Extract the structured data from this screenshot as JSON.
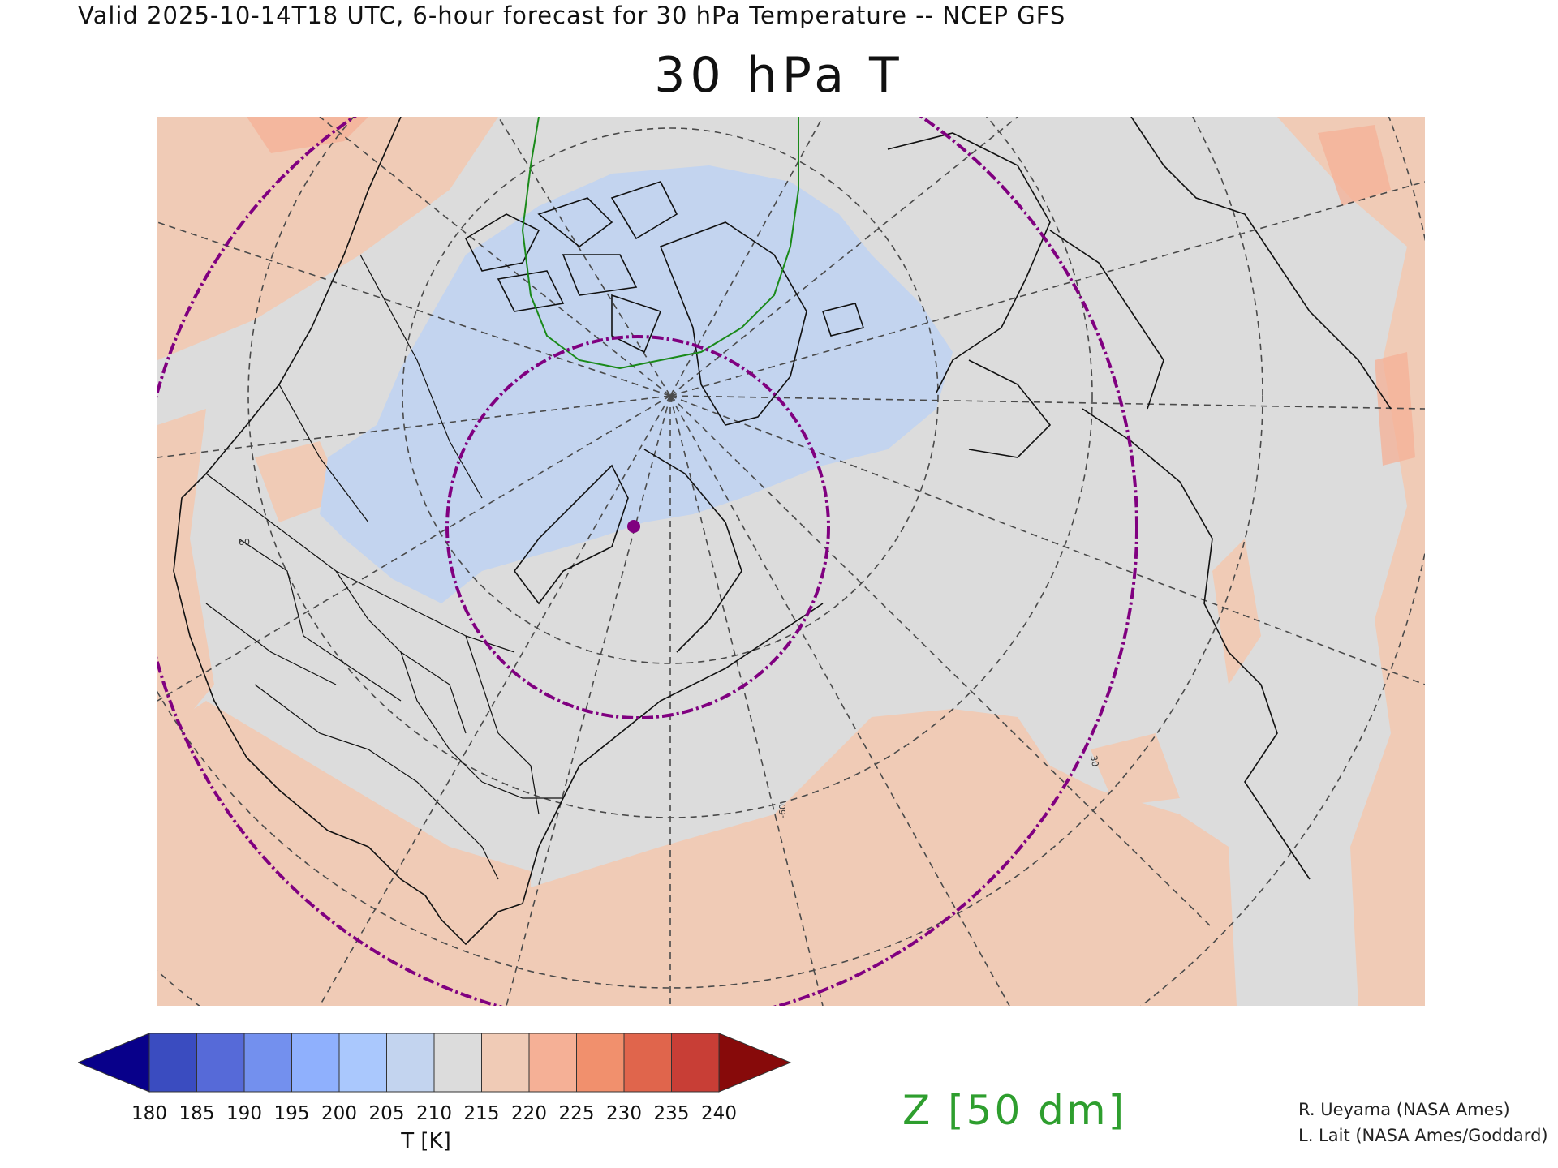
{
  "header": {
    "valid_line": "Valid 2025-10-14T18 UTC, 6-hour forecast for 30 hPa Temperature -- NCEP GFS",
    "title": "30 hPa T"
  },
  "map": {
    "projection": "polar-stereographic",
    "graticule_labels": [
      "60",
      "30",
      "-60"
    ],
    "marker": "sub-polar-point"
  },
  "colorbar": {
    "ticks": [
      "180",
      "185",
      "190",
      "195",
      "200",
      "205",
      "210",
      "215",
      "220",
      "225",
      "230",
      "235",
      "240"
    ],
    "label": "T [K]",
    "colors": [
      "#08008a",
      "#3a4cc0",
      "#566ad8",
      "#7390ee",
      "#8fb0fd",
      "#aac8fd",
      "#c3d4ef",
      "#dcdcdc",
      "#f0cbb6",
      "#f5b096",
      "#f1906d",
      "#e0654c",
      "#c83e36",
      "#870a0a"
    ]
  },
  "overlay_label": "Z [50 dm]",
  "credits": {
    "line1": "R. Ueyama (NASA Ames)",
    "line2": "L. Lait (NASA Ames/Goddard)"
  },
  "colors": {
    "cold_fill": "#c3d4ef",
    "neutral_fill": "#dcdcdc",
    "warm_fill": "#f0cbb6",
    "contour_green": "#1a8a1a",
    "circle_purple": "#800080"
  }
}
